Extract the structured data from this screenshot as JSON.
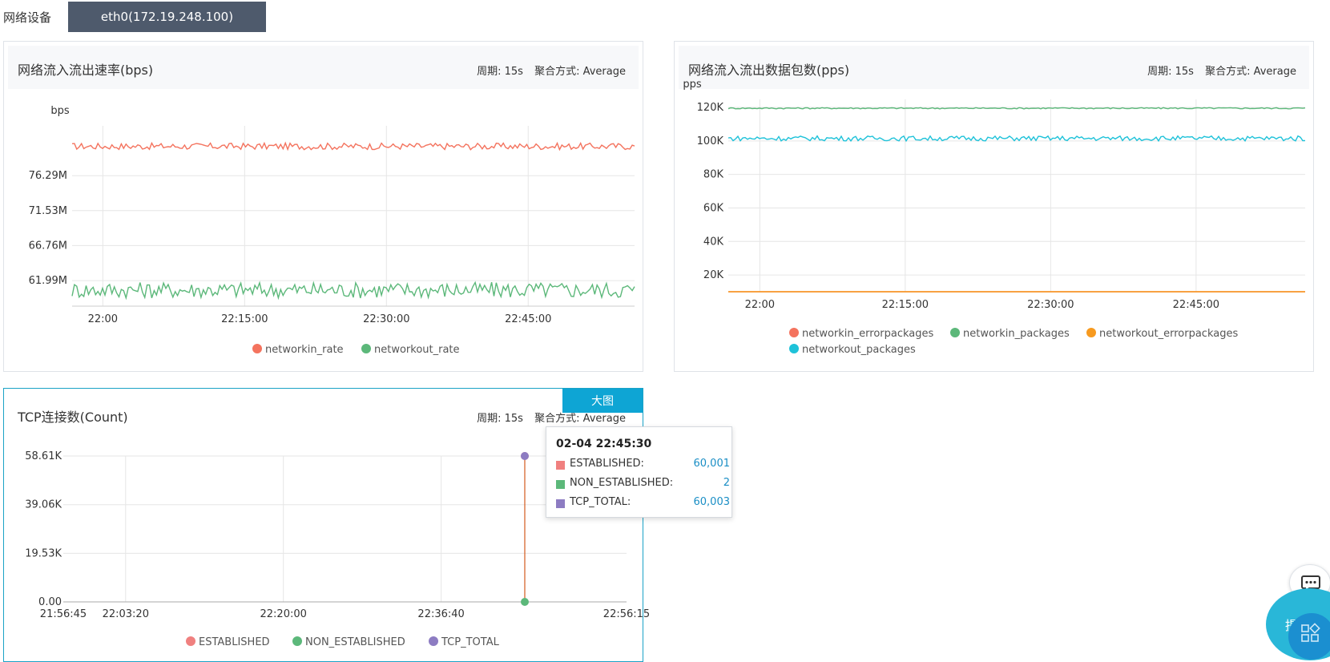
{
  "topbar": {
    "label": "网络设备",
    "device": "eth0(172.19.248.100)"
  },
  "panels": [
    {
      "title": "网络流入流出速率(bps)",
      "period": "周期: 15s",
      "aggregation": "聚合方式: Average"
    },
    {
      "title": "网络流入流出数据包数(pps)",
      "period": "周期: 15s",
      "aggregation": "聚合方式: Average"
    },
    {
      "title": "TCP连接数(Count)",
      "period": "周期: 15s",
      "aggregation": "聚合方式: Average",
      "bigview": "大图"
    }
  ],
  "tooltip": {
    "title": "02-04 22:45:30",
    "rows": [
      {
        "name": "ESTABLISHED:",
        "value": "60,001",
        "color": "#f0807f"
      },
      {
        "name": "NON_ESTABLISHED:",
        "value": "2",
        "color": "#5cb87a"
      },
      {
        "name": "TCP_TOTAL:",
        "value": "60,003",
        "color": "#8d7cc2"
      }
    ]
  },
  "fab": {
    "ask_label": "提问",
    "chat_icon": "chat-icon",
    "grid_icon": "grid-icon"
  },
  "chart_data": [
    {
      "type": "line",
      "unit_label": "bps",
      "x_ticks": [
        "22:00",
        "22:15:00",
        "22:30:00",
        "22:45:00"
      ],
      "y_ticks": [
        "61.99M",
        "66.76M",
        "71.53M",
        "76.29M"
      ],
      "y_tick_values": [
        61.99,
        66.76,
        71.53,
        76.29
      ],
      "ylim": [
        58.5,
        82.0
      ],
      "x_range": [
        "21:56:45",
        "22:56:15"
      ],
      "grid": true,
      "legend_position": "bottom",
      "series": [
        {
          "name": "networkin_rate",
          "color": "#f4735e",
          "mean": 80.3,
          "noise": 0.45
        },
        {
          "name": "networkout_rate",
          "color": "#5cb87a",
          "mean": 60.7,
          "noise": 1.1
        }
      ]
    },
    {
      "type": "line",
      "unit_label": "pps",
      "x_ticks": [
        "22:00",
        "22:15:00",
        "22:30:00",
        "22:45:00"
      ],
      "y_ticks": [
        "20K",
        "40K",
        "60K",
        "80K",
        "100K",
        "120K"
      ],
      "y_tick_values": [
        20000,
        40000,
        60000,
        80000,
        100000,
        120000
      ],
      "ylim": [
        10000,
        120000
      ],
      "x_range": [
        "21:56:45",
        "22:56:15"
      ],
      "grid": true,
      "legend_position": "bottom",
      "series": [
        {
          "name": "networkin_errorpackages",
          "color": "#f4735e",
          "mean": 10000,
          "noise": 0
        },
        {
          "name": "networkin_packages",
          "color": "#5cb87a",
          "mean": 119500,
          "noise": 400
        },
        {
          "name": "networkout_errorpackages",
          "color": "#f79a1f",
          "mean": 10000,
          "noise": 0
        },
        {
          "name": "networkout_packages",
          "color": "#1ec2d9",
          "mean": 101500,
          "noise": 1500
        }
      ]
    },
    {
      "type": "line",
      "y_ticks": [
        "0.00",
        "19.53K",
        "39.06K",
        "58.61K"
      ],
      "y_tick_values": [
        0,
        19530,
        39060,
        58610
      ],
      "ylim": [
        0,
        58610
      ],
      "x_ticks": [
        "21:56:45",
        "22:03:20",
        "22:20:00",
        "22:36:40",
        "22:56:15"
      ],
      "grid": true,
      "legend_position": "bottom",
      "series": [
        {
          "name": "ESTABLISHED",
          "color": "#f0807f",
          "values": [
            {
              "x": "22:45:30",
              "y": 60001
            }
          ]
        },
        {
          "name": "NON_ESTABLISHED",
          "color": "#5cb87a",
          "values": [
            {
              "x": "22:45:30",
              "y": 2
            }
          ]
        },
        {
          "name": "TCP_TOTAL",
          "color": "#8d7cc2",
          "values": [
            {
              "x": "22:45:30",
              "y": 60003
            }
          ]
        }
      ],
      "hover_x": "22:45:30"
    }
  ]
}
